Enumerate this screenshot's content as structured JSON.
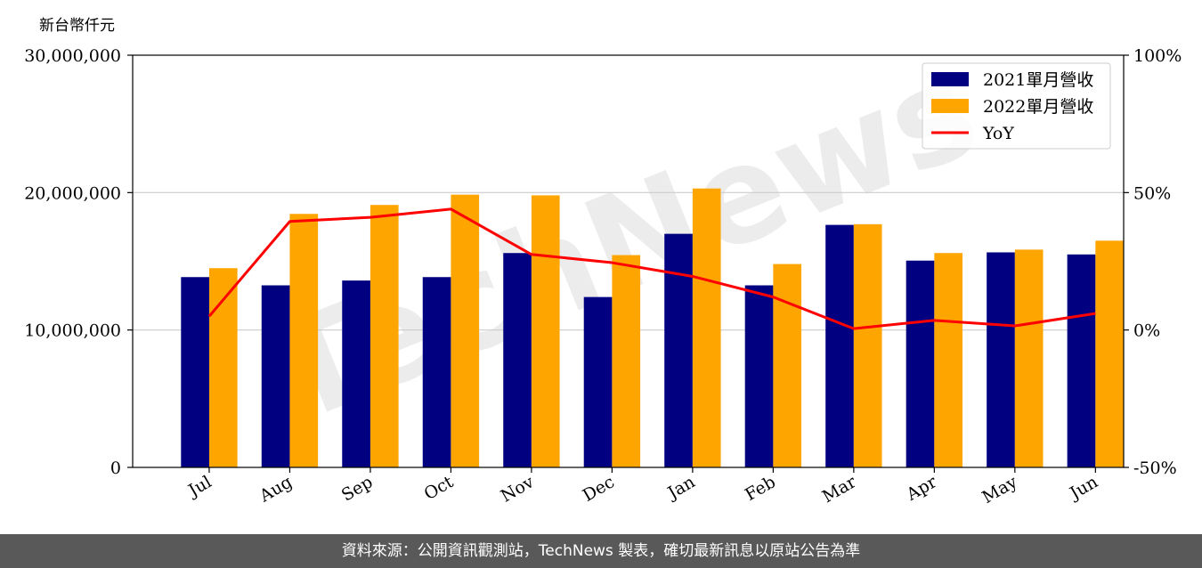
{
  "chart_data": {
    "type": "bar",
    "unit_label": "新台幣仟元",
    "categories": [
      "Jul",
      "Aug",
      "Sep",
      "Oct",
      "Nov",
      "Dec",
      "Jan",
      "Feb",
      "Mar",
      "Apr",
      "May",
      "Jun"
    ],
    "series": [
      {
        "name": "2021單月營收",
        "type": "bar",
        "axis": "left",
        "color": "#000080",
        "values": [
          13850000,
          13250000,
          13600000,
          13850000,
          15600000,
          12400000,
          17000000,
          13250000,
          17650000,
          15050000,
          15650000,
          15500000
        ]
      },
      {
        "name": "2022單月營收",
        "type": "bar",
        "axis": "left",
        "color": "#FFA500",
        "values": [
          14500000,
          18450000,
          19100000,
          19850000,
          19800000,
          15450000,
          20300000,
          14800000,
          17700000,
          15600000,
          15850000,
          16500000
        ]
      },
      {
        "name": "YoY",
        "type": "line",
        "axis": "right",
        "color": "#FF0000",
        "values": [
          5,
          39.5,
          41,
          44,
          27.5,
          24.5,
          19.5,
          12,
          0.5,
          3.5,
          1.5,
          6
        ]
      }
    ],
    "left_axis": {
      "ylim": [
        0,
        30000000
      ],
      "ticks": [
        0,
        10000000,
        20000000,
        30000000
      ],
      "tick_labels": [
        "0",
        "10,000,000",
        "20,000,000",
        "30,000,000"
      ]
    },
    "right_axis": {
      "ylim": [
        -50,
        100
      ],
      "ticks": [
        -50,
        0,
        50,
        100
      ],
      "tick_labels": [
        "-50%",
        "0%",
        "50%",
        "100%"
      ]
    },
    "grid": "horizontal",
    "legend": "top-right",
    "watermark": "TechNews"
  },
  "footer": {
    "source": "資料來源：公開資訊觀測站，TechNews 製表，確切最新訊息以原站公告為準"
  }
}
